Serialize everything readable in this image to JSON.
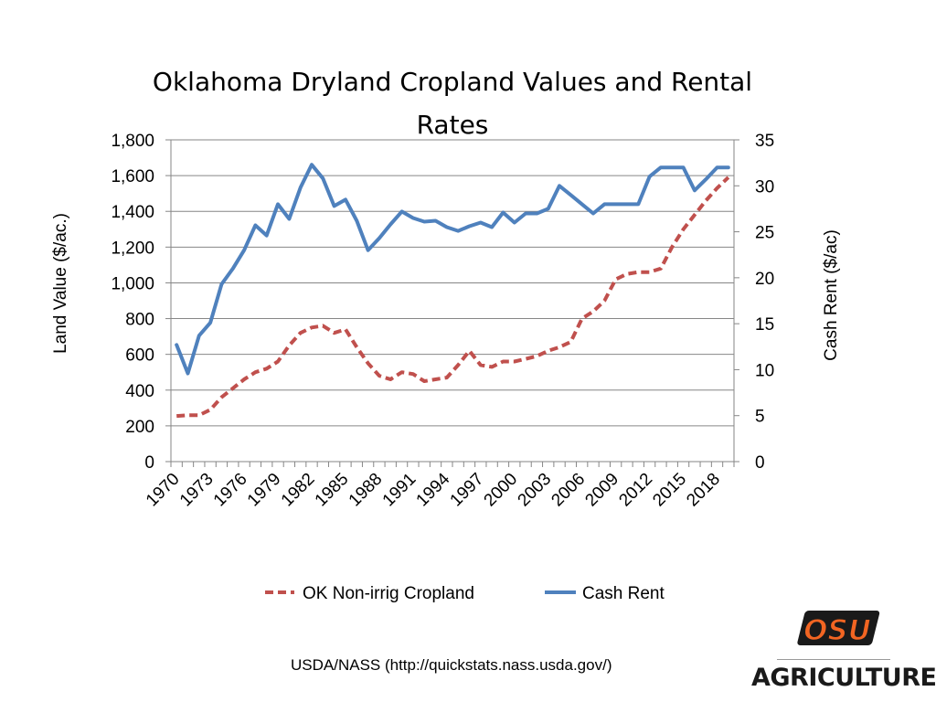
{
  "chart_data": {
    "type": "line",
    "title": "Oklahoma Dryland Cropland Values and Rental Rates",
    "title_lines": [
      "Oklahoma Dryland Cropland Values and Rental",
      "Rates"
    ],
    "ylabel": "Land Value ($/ac.)",
    "y2label": "Cash Rent ($/ac)",
    "ylim": [
      0,
      1800
    ],
    "y2lim": [
      0,
      35
    ],
    "yticks": [
      "0",
      "200",
      "400",
      "600",
      "800",
      "1,000",
      "1,200",
      "1,400",
      "1,600",
      "1,800"
    ],
    "y2ticks": [
      "0",
      "5",
      "10",
      "15",
      "20",
      "25",
      "30",
      "35"
    ],
    "x": [
      1970,
      1971,
      1972,
      1973,
      1974,
      1975,
      1976,
      1977,
      1978,
      1979,
      1980,
      1981,
      1982,
      1983,
      1984,
      1985,
      1986,
      1987,
      1988,
      1989,
      1990,
      1991,
      1992,
      1993,
      1994,
      1995,
      1996,
      1997,
      1998,
      1999,
      2000,
      2001,
      2002,
      2003,
      2004,
      2005,
      2006,
      2007,
      2008,
      2009,
      2010,
      2011,
      2012,
      2013,
      2014,
      2015,
      2016,
      2017,
      2018,
      2019
    ],
    "xtick_labels": [
      "1970",
      "1973",
      "1976",
      "1979",
      "1982",
      "1985",
      "1988",
      "1991",
      "1994",
      "1997",
      "2000",
      "2003",
      "2006",
      "2009",
      "2012",
      "2015",
      "2018"
    ],
    "grid": true,
    "legend_position": "bottom",
    "series": [
      {
        "name": "OK Non-irrig Cropland",
        "axis": "left",
        "color": "#c0504d",
        "style": "dashed",
        "values": [
          255,
          260,
          260,
          290,
          360,
          410,
          460,
          500,
          520,
          560,
          650,
          720,
          750,
          760,
          720,
          740,
          640,
          550,
          480,
          460,
          500,
          490,
          450,
          460,
          470,
          540,
          620,
          540,
          530,
          560,
          560,
          575,
          590,
          620,
          640,
          670,
          800,
          840,
          900,
          1020,
          1050,
          1060,
          1060,
          1080,
          1200,
          1300,
          1380,
          1460,
          1530,
          1590
        ]
      },
      {
        "name": "Cash Rent",
        "axis": "right",
        "color": "#4f81bd",
        "style": "solid",
        "values": [
          12.7,
          9.6,
          13.7,
          15.1,
          19.3,
          21,
          23,
          25.7,
          24.6,
          28,
          26.4,
          29.8,
          32.3,
          30.8,
          27.8,
          28.5,
          26.2,
          23,
          24.3,
          25.8,
          27.2,
          26.5,
          26.1,
          26.2,
          25.5,
          25.1,
          25.6,
          26,
          25.5,
          27.1,
          26,
          27,
          27,
          27.5,
          30,
          29,
          28,
          27,
          28,
          28,
          28,
          28,
          31,
          32,
          32,
          32,
          29.5,
          30.7,
          32,
          32
        ]
      }
    ]
  },
  "footer": {
    "source": "USDA/NASS (http://quickstats.nass.usda.gov/)",
    "logo_mark_label": "OSU",
    "logo_label": "AGRICULTURE",
    "logo_color": "#f26522"
  }
}
